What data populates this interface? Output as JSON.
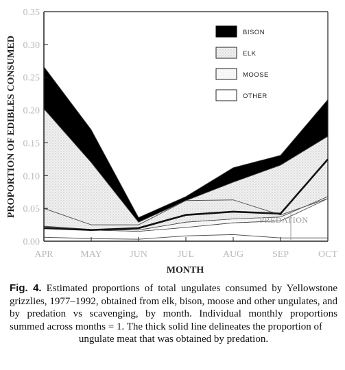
{
  "chart_data": {
    "type": "area",
    "categories": [
      "APR",
      "MAY",
      "JUN",
      "JUL",
      "AUG",
      "SEP",
      "OCT"
    ],
    "xlabel": "MONTH",
    "ylabel": "PROPORTION OF EDIBLES CONSUMED",
    "ylim": [
      0,
      0.35
    ],
    "yticks": [
      "0.00",
      "0.05",
      "0.10",
      "0.15",
      "0.20",
      "0.25",
      "0.30",
      "0.35"
    ],
    "series": [
      {
        "name": "OTHER",
        "values": [
          0.022,
          0.017,
          0.015,
          0.021,
          0.028,
          0.031,
          0.065
        ]
      },
      {
        "name": "MOOSE",
        "values": [
          0.001,
          0.001,
          0.002,
          0.008,
          0.006,
          0.006,
          0.003
        ]
      },
      {
        "name": "ELK",
        "values": [
          0.179,
          0.102,
          0.012,
          0.033,
          0.056,
          0.079,
          0.092
        ]
      },
      {
        "name": "BISON",
        "values": [
          0.064,
          0.05,
          0.007,
          0.006,
          0.022,
          0.015,
          0.056
        ]
      }
    ],
    "predation": [
      0.02,
      0.017,
      0.02,
      0.04,
      0.045,
      0.042,
      0.125
    ],
    "inner_lines": [
      [
        0.05,
        0.025,
        0.025,
        0.062,
        0.063,
        0.04,
        0.065
      ],
      [
        0.006,
        0.004,
        0.003,
        0.008,
        0.01,
        0.005,
        0.005
      ]
    ],
    "legend_position": "top-right",
    "colors": {
      "bison": "#000000",
      "elk_fill": "#eeeeee",
      "moose_fill": "#f5f5f5",
      "other_fill": "#ffffff"
    },
    "annotation": "PREDATION",
    "annotation_month": "SEP",
    "annotation_value": 0.028
  },
  "caption": {
    "label": "Fig. 4.",
    "line1": "Estimated proportions of total ungulates consumed by",
    "line2": "Yellowstone grizzlies, 1977–1992, obtained from elk, bison,",
    "line3": "moose and other ungulates, and by predation vs scavenging,",
    "line4": "by month. Individual monthly proportions summed across",
    "line5": "months = 1. The thick solid line delineates the proportion of",
    "line6": "ungulate meat that was obtained by predation."
  }
}
